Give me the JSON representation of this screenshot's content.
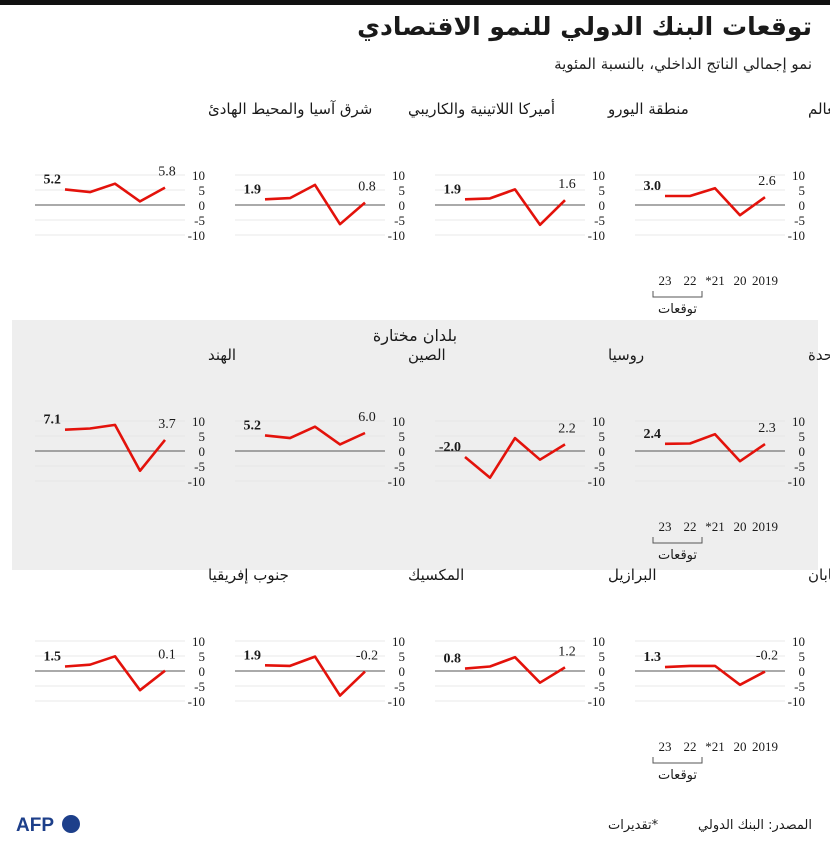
{
  "header": {
    "title": "توقعات البنك الدولي للنمو الاقتصادي",
    "subtitle": "نمو إجمالي الناتج الداخلي، بالنسبة المئوية"
  },
  "section_title": "بلدان مختارة",
  "footer": {
    "source": "المصدر: البنك الدولي",
    "note": "*تقديرات",
    "logo_text": "AFP"
  },
  "colors": {
    "line": "#e3120b",
    "panel": "#eeeeee",
    "text": "#1a1a1a"
  },
  "chart_data": [
    {
      "type": "line",
      "title": "العالم",
      "x": [
        "2019",
        "20",
        "*21",
        "22",
        "23"
      ],
      "y": [
        2.6,
        -3.4,
        5.6,
        3.0,
        3.0
      ],
      "start_label": "3.0",
      "end_label": "2.6",
      "show_axis_labels": true,
      "ylim": [
        -10,
        10
      ],
      "yticks": [
        10,
        5,
        0,
        -5,
        -10
      ]
    },
    {
      "type": "line",
      "title": "منطقة اليورو",
      "x": [
        "2019",
        "20",
        "*21",
        "22",
        "23"
      ],
      "y": [
        1.6,
        -6.6,
        5.2,
        2.2,
        1.9
      ],
      "start_label": "1.9",
      "end_label": "1.6",
      "show_axis_labels": false,
      "ylim": [
        -10,
        10
      ],
      "yticks": [
        10,
        5,
        0,
        -5,
        -10
      ]
    },
    {
      "type": "line",
      "title": "أميركا اللاتينية والكاريبي",
      "x": [
        "2019",
        "20",
        "*21",
        "22",
        "23"
      ],
      "y": [
        0.8,
        -6.4,
        6.7,
        2.3,
        1.9
      ],
      "start_label": "1.9",
      "end_label": "0.8",
      "show_axis_labels": false,
      "ylim": [
        -10,
        10
      ],
      "yticks": [
        10,
        5,
        0,
        -5,
        -10
      ]
    },
    {
      "type": "line",
      "title": "شرق آسيا والمحيط الهادئ",
      "x": [
        "2019",
        "20",
        "*21",
        "22",
        "23"
      ],
      "y": [
        5.8,
        1.2,
        7.1,
        4.3,
        5.2
      ],
      "start_label": "5.2",
      "end_label": "5.8",
      "show_axis_labels": false,
      "ylim": [
        -10,
        10
      ],
      "yticks": [
        10,
        5,
        0,
        -5,
        -10
      ]
    },
    {
      "type": "line",
      "title": "الولايات المحدة",
      "x": [
        "2019",
        "20",
        "*21",
        "22",
        "23"
      ],
      "y": [
        2.3,
        -3.4,
        5.6,
        2.5,
        2.4
      ],
      "start_label": "2.4",
      "end_label": "2.3",
      "show_axis_labels": true,
      "ylim": [
        -10,
        10
      ],
      "yticks": [
        10,
        5,
        0,
        -5,
        -10
      ]
    },
    {
      "type": "line",
      "title": "روسيا",
      "x": [
        "2019",
        "20",
        "*21",
        "22",
        "23"
      ],
      "y": [
        2.2,
        -2.9,
        4.3,
        -8.9,
        -2.0
      ],
      "start_label": "-2.0",
      "end_label": "2.2",
      "show_axis_labels": false,
      "ylim": [
        -10,
        10
      ],
      "yticks": [
        10,
        5,
        0,
        -5,
        -10
      ]
    },
    {
      "type": "line",
      "title": "الصين",
      "x": [
        "2019",
        "20",
        "*21",
        "22",
        "23"
      ],
      "y": [
        6.0,
        2.2,
        8.1,
        4.3,
        5.2
      ],
      "start_label": "5.2",
      "end_label": "6.0",
      "show_axis_labels": false,
      "ylim": [
        -10,
        10
      ],
      "yticks": [
        10,
        5,
        0,
        -5,
        -10
      ]
    },
    {
      "type": "line",
      "title": "الهند",
      "x": [
        "2019",
        "20",
        "*21",
        "22",
        "23"
      ],
      "y": [
        3.7,
        -6.6,
        8.7,
        7.5,
        7.1
      ],
      "start_label": "7.1",
      "end_label": "3.7",
      "show_axis_labels": false,
      "ylim": [
        -10,
        10
      ],
      "yticks": [
        10,
        5,
        0,
        -5,
        -10
      ]
    },
    {
      "type": "line",
      "title": "اليابان",
      "x": [
        "2019",
        "20",
        "*21",
        "22",
        "23"
      ],
      "y": [
        -0.2,
        -4.6,
        1.7,
        1.7,
        1.3
      ],
      "start_label": "1.3",
      "end_label": "-0.2",
      "show_axis_labels": true,
      "ylim": [
        -10,
        10
      ],
      "yticks": [
        10,
        5,
        0,
        -5,
        -10
      ]
    },
    {
      "type": "line",
      "title": "البرازيل",
      "x": [
        "2019",
        "20",
        "*21",
        "22",
        "23"
      ],
      "y": [
        1.2,
        -3.9,
        4.6,
        1.5,
        0.8
      ],
      "start_label": "0.8",
      "end_label": "1.2",
      "show_axis_labels": false,
      "ylim": [
        -10,
        10
      ],
      "yticks": [
        10,
        5,
        0,
        -5,
        -10
      ]
    },
    {
      "type": "line",
      "title": "المكسيك",
      "x": [
        "2019",
        "20",
        "*21",
        "22",
        "23"
      ],
      "y": [
        -0.2,
        -8.2,
        4.8,
        1.7,
        1.9
      ],
      "start_label": "1.9",
      "end_label": "-0.2",
      "show_axis_labels": false,
      "ylim": [
        -10,
        10
      ],
      "yticks": [
        10,
        5,
        0,
        -5,
        -10
      ]
    },
    {
      "type": "line",
      "title": "جنوب إفريقيا",
      "x": [
        "2019",
        "20",
        "*21",
        "22",
        "23"
      ],
      "y": [
        0.1,
        -6.4,
        4.9,
        2.1,
        1.5
      ],
      "start_label": "1.5",
      "end_label": "0.1",
      "show_axis_labels": false,
      "ylim": [
        -10,
        10
      ],
      "yticks": [
        10,
        5,
        0,
        -5,
        -10
      ]
    }
  ],
  "axis_group_label": "توقعات"
}
